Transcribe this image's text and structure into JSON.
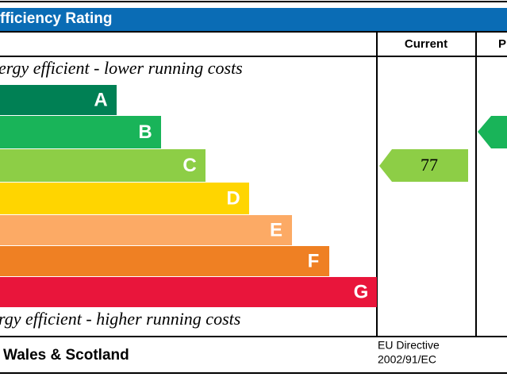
{
  "header": {
    "title": "fficiency Rating"
  },
  "columns": {
    "current": "Current",
    "potential": "P"
  },
  "top_note": "ergy efficient - lower running costs",
  "bottom_note": "rgy efficient - higher running costs",
  "bands": [
    {
      "letter": "A",
      "color": "#008054"
    },
    {
      "letter": "B",
      "color": "#19b459"
    },
    {
      "letter": "C",
      "color": "#8dce46"
    },
    {
      "letter": "D",
      "color": "#ffd500"
    },
    {
      "letter": "E",
      "color": "#fcaa65"
    },
    {
      "letter": "F",
      "color": "#ef8023"
    },
    {
      "letter": "G",
      "color": "#e9153b"
    }
  ],
  "current_rating": {
    "value": "77",
    "color": "#8dce46"
  },
  "potential_rating": {
    "color": "#19b459"
  },
  "footer": {
    "region": "Wales & Scotland",
    "directive": [
      "EU Directive",
      "2002/91/EC"
    ]
  }
}
